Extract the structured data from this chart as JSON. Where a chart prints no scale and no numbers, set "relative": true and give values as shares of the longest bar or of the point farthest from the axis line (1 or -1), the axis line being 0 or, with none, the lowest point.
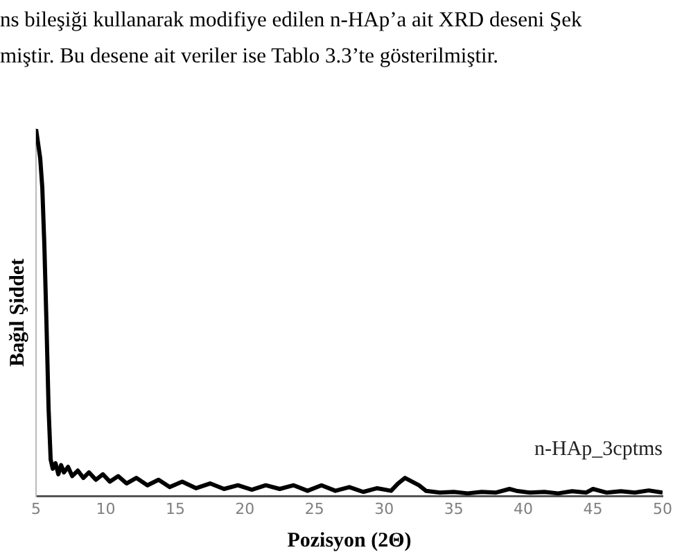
{
  "chart_data": {
    "type": "line",
    "relative": true,
    "xlabel": "Pozisyon (2Θ)",
    "ylabel": "Bağıl Şiddet",
    "annotations": [
      "ns bileşiği kullanarak modifiye edilen n-HAp’a ait XRD deseni Şek",
      "miştir. Bu desene ait veriler ise Tablo 3.3’te gösterilmiştir."
    ],
    "xlim": [
      5,
      50
    ],
    "xticks": [
      5,
      10,
      15,
      20,
      25,
      30,
      35,
      40,
      45,
      50
    ],
    "grid": false,
    "legend": false,
    "marker": "none",
    "line_style": "solid",
    "series": [
      {
        "name": "n-HAp_3cptms",
        "color": "#000000",
        "x": [
          5.0,
          5.15,
          5.3,
          5.45,
          5.6,
          5.75,
          5.9,
          6.05,
          6.2,
          6.4,
          6.6,
          6.8,
          7.0,
          7.3,
          7.6,
          8.0,
          8.4,
          8.8,
          9.3,
          9.8,
          10.3,
          10.9,
          11.5,
          12.2,
          13.0,
          13.8,
          14.6,
          15.5,
          16.5,
          17.5,
          18.5,
          19.5,
          20.5,
          21.5,
          22.5,
          23.5,
          24.5,
          25.5,
          26.5,
          27.5,
          28.5,
          29.5,
          30.5,
          31.0,
          31.5,
          32.0,
          32.5,
          33.0,
          34.0,
          35.0,
          36.0,
          37.0,
          38.0,
          39.0,
          39.5,
          40.5,
          41.5,
          42.5,
          43.5,
          44.5,
          45.0,
          46.0,
          47.0,
          48.0,
          49.0,
          50.0
        ],
        "values": [
          1.0,
          0.96,
          0.92,
          0.84,
          0.68,
          0.47,
          0.24,
          0.1,
          0.075,
          0.09,
          0.06,
          0.085,
          0.065,
          0.08,
          0.055,
          0.07,
          0.05,
          0.065,
          0.045,
          0.06,
          0.04,
          0.055,
          0.035,
          0.05,
          0.03,
          0.045,
          0.025,
          0.04,
          0.022,
          0.035,
          0.02,
          0.03,
          0.018,
          0.03,
          0.02,
          0.03,
          0.015,
          0.03,
          0.015,
          0.025,
          0.012,
          0.022,
          0.015,
          0.035,
          0.05,
          0.04,
          0.03,
          0.015,
          0.01,
          0.012,
          0.008,
          0.012,
          0.01,
          0.02,
          0.015,
          0.01,
          0.012,
          0.008,
          0.014,
          0.01,
          0.02,
          0.01,
          0.014,
          0.01,
          0.016,
          0.01
        ]
      }
    ]
  }
}
